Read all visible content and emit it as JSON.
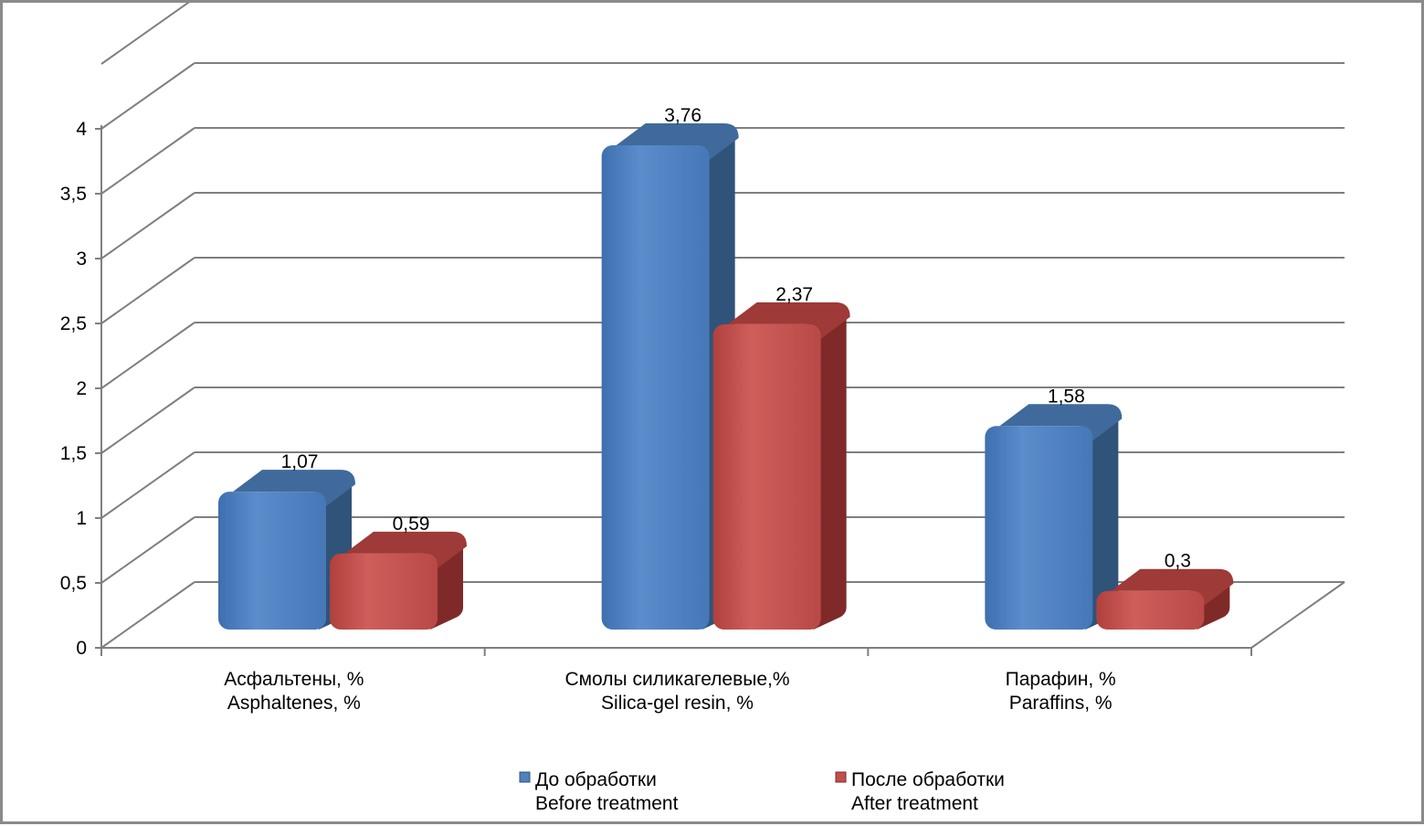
{
  "chart_data": {
    "type": "bar",
    "categories": [
      [
        "Асфальтены,  %",
        "Asphaltenes, %"
      ],
      [
        "Смолы  силикагелевые,%",
        "Silica-gel resin, %"
      ],
      [
        "Парафин,  %",
        "Paraffins, %"
      ]
    ],
    "series": [
      {
        "name": [
          "До обработки",
          "Before treatment"
        ],
        "values": [
          1.07,
          3.76,
          1.58
        ],
        "labels": [
          "1,07",
          "3,76",
          "1,58"
        ],
        "color": "#4F81BD",
        "side_color": "#2F5379",
        "top_color": "#3F6A9B"
      },
      {
        "name": [
          "После обработки",
          "After treatment"
        ],
        "values": [
          0.59,
          2.37,
          0.3
        ],
        "labels": [
          "0,59",
          "2,37",
          "0,3"
        ],
        "color": "#C0504D",
        "side_color": "#7F2A28",
        "top_color": "#9E3A37"
      }
    ],
    "yticks": [
      "0",
      "0,5",
      "1",
      "1,5",
      "2",
      "2,5",
      "3",
      "3,5",
      "4"
    ],
    "ylim": [
      0,
      4.5
    ],
    "grid": true,
    "legend_position": "bottom",
    "style": "3d-column"
  }
}
